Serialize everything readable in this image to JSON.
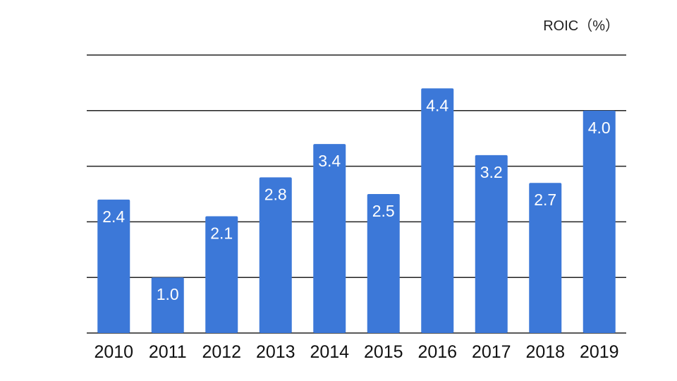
{
  "chart_data": {
    "type": "bar",
    "unit_label": "ROIC（%）",
    "categories": [
      "2010",
      "2011",
      "2012",
      "2013",
      "2014",
      "2015",
      "2016",
      "2017",
      "2018",
      "2019"
    ],
    "values": [
      2.4,
      1.0,
      2.1,
      2.8,
      3.4,
      2.5,
      4.4,
      3.2,
      2.7,
      4.0
    ],
    "value_labels": [
      "2.4",
      "1.0",
      "2.1",
      "2.8",
      "3.4",
      "2.5",
      "4.4",
      "3.2",
      "2.7",
      "4.0"
    ],
    "ylim": [
      0,
      5
    ],
    "grid": true,
    "bar_color": "#3c78d8",
    "value_label_color": "#ffffff"
  }
}
